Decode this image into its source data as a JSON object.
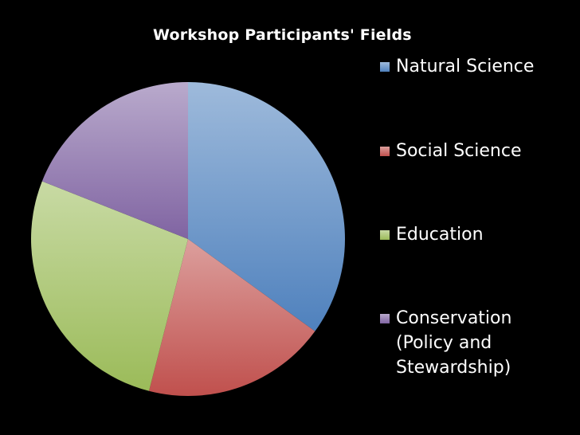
{
  "chart_data": {
    "type": "pie",
    "title": "Workshop Participants' Fields",
    "categories": [
      "Natural Science",
      "Social Science",
      "Education",
      "Conservation (Policy and Stewardship)"
    ],
    "values": [
      35,
      19,
      27,
      19
    ],
    "colors": [
      "#4f81bd",
      "#c0504d",
      "#9bbb59",
      "#8064a2"
    ],
    "legend_position": "right"
  }
}
